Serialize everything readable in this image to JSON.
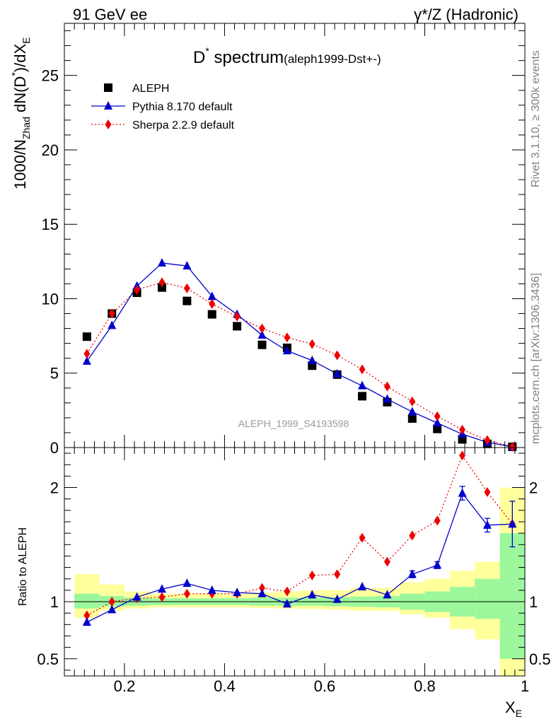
{
  "header": {
    "left": "91 GeV ee",
    "right": "γ*/Z (Hadronic)"
  },
  "side_text": {
    "rivet": "Rivet 3.1.10, ≥ 300k events",
    "mcplots": "mcplots.cern.ch [arXiv:1306.3436]"
  },
  "watermark": "ALEPH_1999_S4193598",
  "title": {
    "main": "D",
    "sup": "*",
    "tail": " spectrum",
    "small": "(aleph1999-Dst+-)"
  },
  "colors": {
    "aleph": "#000000",
    "pythia": "#0000cc",
    "sherpa": "#ee0000",
    "band_inner": "#9cf79c",
    "band_outer": "#ffff9c"
  },
  "chart_data": [
    {
      "type": "scatter",
      "panel": "main",
      "title": "D* spectrum (aleph1999-Dst+-)",
      "xlabel": "X_E",
      "ylabel": "1000/N_Zhad dN(D*)/dX_E",
      "xlim": [
        0.08,
        1.0
      ],
      "ylim": [
        0,
        28.5
      ],
      "y_ticks": [
        0,
        5,
        10,
        15,
        20,
        25
      ],
      "y_tick_labels": [
        "0",
        "5",
        "10",
        "15",
        "20",
        "25"
      ],
      "x": [
        0.125,
        0.175,
        0.225,
        0.275,
        0.325,
        0.375,
        0.425,
        0.475,
        0.525,
        0.575,
        0.625,
        0.675,
        0.725,
        0.775,
        0.825,
        0.875,
        0.925,
        0.975
      ],
      "series": [
        {
          "name": "ALEPH",
          "style": "square",
          "values": [
            7.45,
            9.0,
            10.4,
            10.75,
            9.85,
            8.95,
            8.15,
            6.9,
            6.7,
            5.5,
            4.9,
            3.45,
            3.05,
            1.95,
            1.25,
            0.55,
            0.25,
            0.05
          ]
        },
        {
          "name": "Pythia 8.170 default",
          "style": "line-triangle",
          "values": [
            5.8,
            8.2,
            10.85,
            12.4,
            12.2,
            10.15,
            8.95,
            7.55,
            6.5,
            5.85,
            4.95,
            4.15,
            3.25,
            2.4,
            1.65,
            0.9,
            0.35,
            0.05
          ]
        },
        {
          "name": "Sherpa 2.2.9 default",
          "style": "dotted-diamond",
          "values": [
            6.3,
            9.0,
            10.6,
            11.1,
            10.7,
            9.65,
            8.8,
            8.0,
            7.4,
            6.95,
            6.2,
            5.25,
            4.1,
            3.1,
            2.1,
            1.2,
            0.5,
            0.05
          ]
        }
      ],
      "legend": "top-left"
    },
    {
      "type": "line",
      "panel": "ratio",
      "ylabel": "Ratio to ALEPH",
      "xlabel": "X_E",
      "xlim": [
        0.08,
        1.0
      ],
      "ylim": [
        0.35,
        2.35
      ],
      "y_ticks": [
        0.5,
        1,
        2
      ],
      "y_tick_labels": [
        "0.5",
        "1",
        "2"
      ],
      "x_ticks": [
        0.2,
        0.4,
        0.6,
        0.8,
        1.0
      ],
      "x_tick_labels": [
        "0.2",
        "0.4",
        "0.6",
        "0.8",
        "1"
      ],
      "x": [
        0.125,
        0.175,
        0.225,
        0.275,
        0.325,
        0.375,
        0.425,
        0.475,
        0.525,
        0.575,
        0.625,
        0.675,
        0.725,
        0.775,
        0.825,
        0.875,
        0.925,
        0.975
      ],
      "bins": [
        [
          0.1,
          0.15
        ],
        [
          0.15,
          0.2
        ],
        [
          0.2,
          0.25
        ],
        [
          0.25,
          0.3
        ],
        [
          0.3,
          0.35
        ],
        [
          0.35,
          0.4
        ],
        [
          0.4,
          0.45
        ],
        [
          0.45,
          0.5
        ],
        [
          0.5,
          0.55
        ],
        [
          0.55,
          0.6
        ],
        [
          0.6,
          0.65
        ],
        [
          0.65,
          0.7
        ],
        [
          0.7,
          0.75
        ],
        [
          0.75,
          0.8
        ],
        [
          0.8,
          0.85
        ],
        [
          0.85,
          0.9
        ],
        [
          0.9,
          0.95
        ],
        [
          0.95,
          1.0
        ]
      ],
      "band_inner": [
        [
          0.94,
          1.07
        ],
        [
          0.96,
          1.05
        ],
        [
          0.965,
          1.035
        ],
        [
          0.97,
          1.03
        ],
        [
          0.97,
          1.03
        ],
        [
          0.97,
          1.03
        ],
        [
          0.97,
          1.03
        ],
        [
          0.965,
          1.035
        ],
        [
          0.965,
          1.035
        ],
        [
          0.965,
          1.035
        ],
        [
          0.96,
          1.04
        ],
        [
          0.955,
          1.045
        ],
        [
          0.95,
          1.05
        ],
        [
          0.93,
          1.07
        ],
        [
          0.91,
          1.09
        ],
        [
          0.87,
          1.13
        ],
        [
          0.85,
          1.2
        ],
        [
          0.5,
          1.6
        ]
      ],
      "band_outer": [
        [
          0.86,
          1.24
        ],
        [
          0.92,
          1.15
        ],
        [
          0.94,
          1.09
        ],
        [
          0.95,
          1.07
        ],
        [
          0.95,
          1.07
        ],
        [
          0.95,
          1.07
        ],
        [
          0.95,
          1.07
        ],
        [
          0.945,
          1.08
        ],
        [
          0.94,
          1.09
        ],
        [
          0.935,
          1.1
        ],
        [
          0.93,
          1.1
        ],
        [
          0.92,
          1.12
        ],
        [
          0.92,
          1.12
        ],
        [
          0.89,
          1.17
        ],
        [
          0.86,
          1.2
        ],
        [
          0.76,
          1.27
        ],
        [
          0.67,
          1.35
        ],
        [
          0.3,
          2.0
        ]
      ],
      "series": [
        {
          "name": "Pythia 8.170 default",
          "values": [
            0.82,
            0.93,
            1.04,
            1.11,
            1.16,
            1.1,
            1.08,
            1.07,
            0.98,
            1.06,
            1.02,
            1.13,
            1.06,
            1.24,
            1.32,
            1.95,
            1.67,
            1.68
          ],
          "errors": [
            0,
            0,
            0,
            0,
            0,
            0,
            0,
            0,
            0,
            0,
            0,
            0,
            0,
            0.03,
            0.03,
            0.06,
            0.06,
            0.2
          ]
        },
        {
          "name": "Sherpa 2.2.9 default",
          "values": [
            0.88,
            1.0,
            1.03,
            1.04,
            1.07,
            1.07,
            1.07,
            1.12,
            1.09,
            1.23,
            1.24,
            1.56,
            1.35,
            1.58,
            1.71,
            2.28,
            1.96,
            1.68
          ]
        }
      ],
      "reference_line": 1.0
    }
  ]
}
